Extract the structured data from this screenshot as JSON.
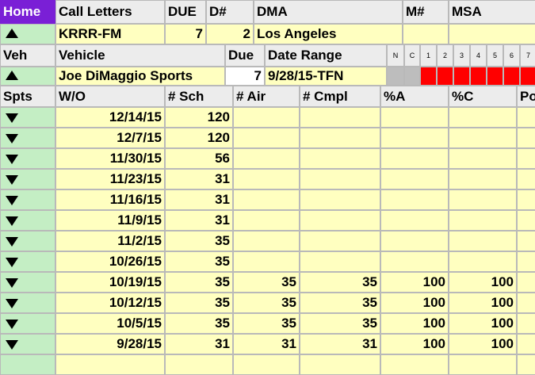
{
  "header": {
    "home_label": "Home",
    "call_letters_label": "Call Letters",
    "due_label": "DUE",
    "dnum_label": "D#",
    "dma_label": "DMA",
    "mnum_label": "M#",
    "msa_label": "MSA"
  },
  "station": {
    "call_letters": "KRRR-FM",
    "due": "7",
    "dnum": "2",
    "dma": "Los Angeles",
    "mnum": "",
    "msa": ""
  },
  "vehicle_header": {
    "veh_label": "Veh",
    "vehicle_label": "Vehicle",
    "due_label": "Due",
    "date_range_label": "Date Range",
    "mini_cols": [
      "N",
      "C",
      "1",
      "2",
      "3",
      "4",
      "5",
      "6",
      "7"
    ]
  },
  "vehicle": {
    "name": "Joe DiMaggio Sports",
    "due": "7",
    "date_range": "9/28/15-TFN"
  },
  "grid": {
    "headers": [
      "Spts",
      "W/O",
      "# Sch",
      "# Air",
      "# Cmpl",
      "%A",
      "%C",
      "Po"
    ],
    "rows": [
      {
        "wo": "12/14/15",
        "sch": "120",
        "air": "",
        "cmpl": "",
        "pa": "",
        "pc": ""
      },
      {
        "wo": "12/7/15",
        "sch": "120",
        "air": "",
        "cmpl": "",
        "pa": "",
        "pc": ""
      },
      {
        "wo": "11/30/15",
        "sch": "56",
        "air": "",
        "cmpl": "",
        "pa": "",
        "pc": ""
      },
      {
        "wo": "11/23/15",
        "sch": "31",
        "air": "",
        "cmpl": "",
        "pa": "",
        "pc": ""
      },
      {
        "wo": "11/16/15",
        "sch": "31",
        "air": "",
        "cmpl": "",
        "pa": "",
        "pc": ""
      },
      {
        "wo": "11/9/15",
        "sch": "31",
        "air": "",
        "cmpl": "",
        "pa": "",
        "pc": ""
      },
      {
        "wo": "11/2/15",
        "sch": "35",
        "air": "",
        "cmpl": "",
        "pa": "",
        "pc": ""
      },
      {
        "wo": "10/26/15",
        "sch": "35",
        "air": "",
        "cmpl": "",
        "pa": "",
        "pc": ""
      },
      {
        "wo": "10/19/15",
        "sch": "35",
        "air": "35",
        "cmpl": "35",
        "pa": "100",
        "pc": "100"
      },
      {
        "wo": "10/12/15",
        "sch": "35",
        "air": "35",
        "cmpl": "35",
        "pa": "100",
        "pc": "100"
      },
      {
        "wo": "10/5/15",
        "sch": "35",
        "air": "35",
        "cmpl": "35",
        "pa": "100",
        "pc": "100"
      },
      {
        "wo": "9/28/15",
        "sch": "31",
        "air": "31",
        "cmpl": "31",
        "pa": "100",
        "pc": "100"
      },
      {
        "wo": "",
        "sch": "",
        "air": "",
        "cmpl": "",
        "pa": "",
        "pc": ""
      }
    ]
  },
  "colors": {
    "home_bg": "#7a1fd6",
    "row_bg": "#ffffc0",
    "control_bg": "#c4eec4",
    "flag_red": "#ff0000"
  }
}
